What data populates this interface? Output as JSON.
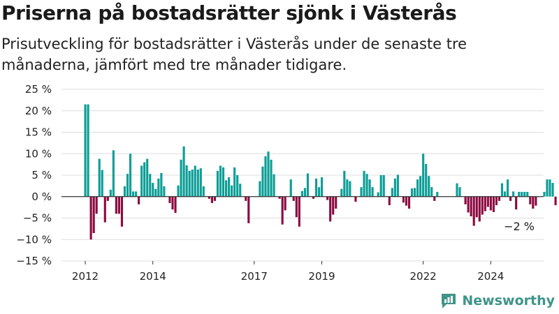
{
  "header": {
    "title": "Priserna på bostadsrätter sjönk i Västerås",
    "subtitle": "Prisutveckling för bostadsrätter i Västerås under de senaste tre månaderna, jämfört med tre månader tidigare."
  },
  "brand": {
    "name": "Newsworthy",
    "icon": "newsworthy-logo-icon",
    "color": "#3f9488"
  },
  "colors": {
    "positive": "#0b9e96",
    "negative": "#8c0a40",
    "grid": "#dddddd",
    "zero_line": "#333333"
  },
  "chart_data": {
    "type": "bar",
    "title": "Priserna på bostadsrätter sjönk i Västerås",
    "ylabel": "",
    "xlabel": "",
    "ylim": [
      -15,
      25
    ],
    "yticks": [
      25,
      20,
      15,
      10,
      5,
      0,
      -5,
      -10,
      -15
    ],
    "ytick_labels": [
      "25 %",
      "20 %",
      "15 %",
      "10 %",
      "5 %",
      "0 %",
      "−5 %",
      "−10 %",
      "−15 %"
    ],
    "grid": true,
    "legend": "none",
    "x_start": "2012-01",
    "frequency": "monthly",
    "xtick_years": [
      "2012",
      "2014",
      "2017",
      "2019",
      "2022",
      "2024"
    ],
    "annotation": {
      "text": "−2 %",
      "value": -2
    },
    "series": [
      {
        "values": [
          21.5,
          21.5,
          -10,
          -8.5,
          -4,
          8.8,
          6.2,
          -6,
          -1,
          1.6,
          10.8,
          -4,
          -4,
          -7,
          2.4,
          5.3,
          10,
          1.2,
          1.2,
          -1.8,
          7.2,
          8,
          8.8,
          5.3,
          3.2,
          1.8,
          4.2,
          5.5,
          2.4,
          0,
          -1.5,
          -3,
          -3.8,
          2.6,
          8.6,
          11.7,
          7.3,
          6,
          6.3,
          7.2,
          6.3,
          6.6,
          2.4,
          0,
          -0.5,
          -1.5,
          -1,
          6,
          7.2,
          6.8,
          3.8,
          4.5,
          2.6,
          6.8,
          5,
          3,
          0,
          -1,
          -6.2,
          0,
          0,
          0,
          3.6,
          7,
          9.4,
          10.5,
          8.6,
          5.2,
          0,
          -0.5,
          -6.5,
          -3.2,
          0,
          4,
          -1,
          -4.8,
          -7,
          1.3,
          2,
          5.4,
          0,
          -0.5,
          4.2,
          2.2,
          4.5,
          0,
          -0.8,
          -5.8,
          -4.2,
          -2.8,
          0,
          1.8,
          6,
          4,
          3.6,
          0,
          -1.2,
          0,
          2.2,
          6,
          5.3,
          4,
          2.2,
          0,
          1,
          5,
          5,
          0,
          -2,
          2,
          4.2,
          5.1,
          0,
          -1.4,
          -2.1,
          -2.8,
          1.9,
          2,
          4,
          4.8,
          10,
          7.6,
          4.8,
          2.2,
          -1,
          1.1,
          0,
          0,
          0,
          0,
          0,
          0,
          3.1,
          2.2,
          0,
          -1.8,
          -3.7,
          -4.6,
          -6.8,
          -4.8,
          -5.8,
          -4.2,
          -3.4,
          -2.4,
          -3.2,
          -3.6,
          -2,
          -1,
          3.1,
          1.2,
          4,
          -1,
          1.2,
          -3,
          1.1,
          1.1,
          1.1,
          1.1,
          -1.8,
          -2.8,
          -2.1,
          0,
          0,
          1.1,
          4,
          4,
          3.2,
          -2
        ]
      }
    ]
  }
}
